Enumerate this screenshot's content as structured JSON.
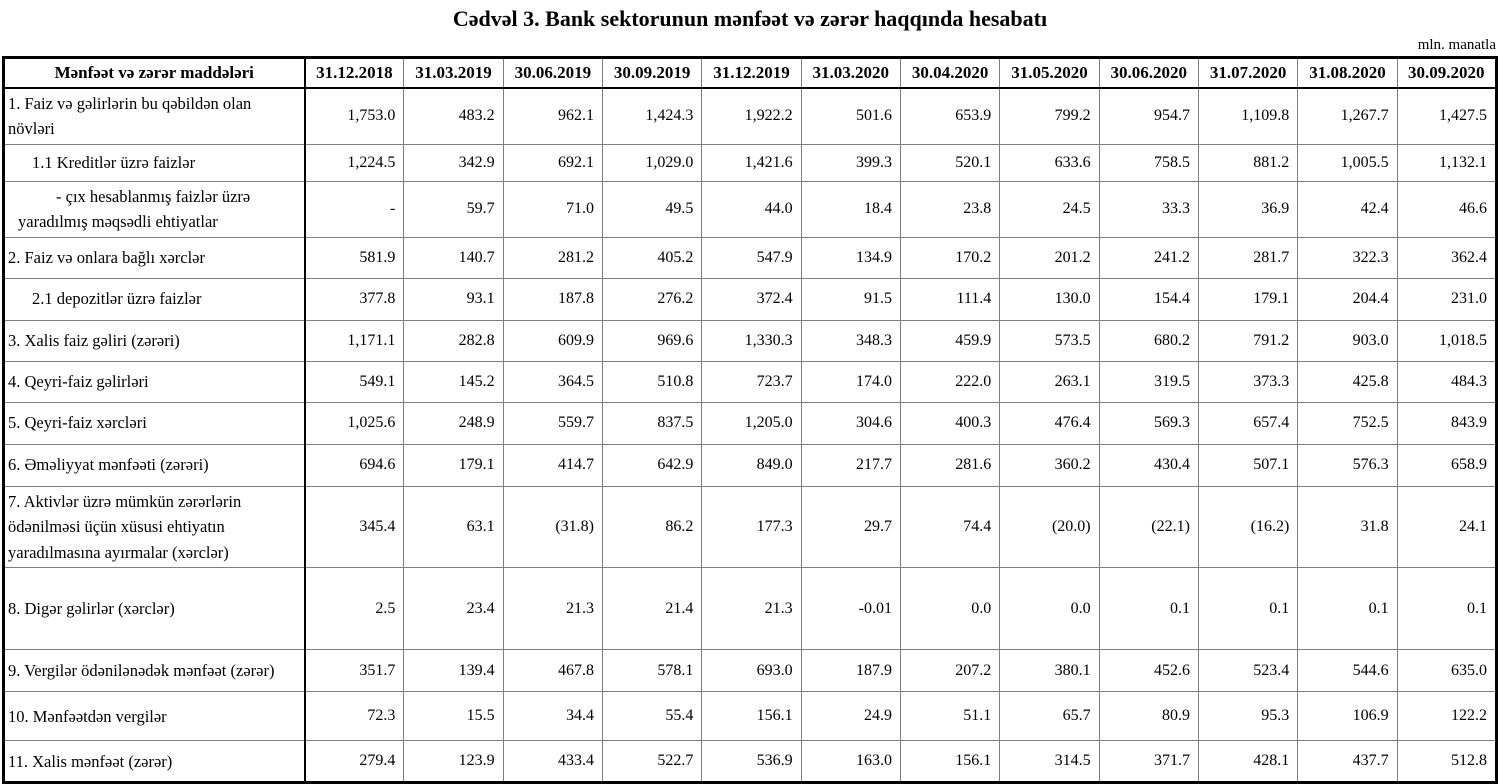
{
  "title": "Cədvəl 3. Bank sektorunun mənfəət və zərər haqqında hesabatı",
  "unit_note": "mln. manatla",
  "table": {
    "header": [
      "Mənfəət və zərər maddələri",
      "31.12.2018",
      "31.03.2019",
      "30.06.2019",
      "30.09.2019",
      "31.12.2019",
      "31.03.2020",
      "30.04.2020",
      "31.05.2020",
      "30.06.2020",
      "31.07.2020",
      "31.08.2020",
      "30.09.2020"
    ],
    "rows": [
      {
        "label": "1. Faiz və gəlirlərin bu qəbildən olan növləri",
        "level": "main",
        "values": [
          "1,753.0",
          "483.2",
          "962.1",
          "1,424.3",
          "1,922.2",
          "501.6",
          "653.9",
          "799.2",
          "954.7",
          "1,109.8",
          "1,267.7",
          "1,427.5"
        ]
      },
      {
        "label": "1.1 Kreditlər üzrə faizlər",
        "level": "sub",
        "values": [
          "1,224.5",
          "342.9",
          "692.1",
          "1,029.0",
          "1,421.6",
          "399.3",
          "520.1",
          "633.6",
          "758.5",
          "881.2",
          "1,005.5",
          "1,132.1"
        ]
      },
      {
        "label": "-  çıx hesablanmış faizlər üzrə yaradılmış məqsədli ehtiyatlar",
        "level": "dash",
        "values": [
          "-",
          "59.7",
          "71.0",
          "49.5",
          "44.0",
          "18.4",
          "23.8",
          "24.5",
          "33.3",
          "36.9",
          "42.4",
          "46.6"
        ]
      },
      {
        "label": "2. Faiz və onlara bağlı xərclər",
        "level": "main",
        "values": [
          "581.9",
          "140.7",
          "281.2",
          "405.2",
          "547.9",
          "134.9",
          "170.2",
          "201.2",
          "241.2",
          "281.7",
          "322.3",
          "362.4"
        ]
      },
      {
        "label": "2.1 depozitlər üzrə faizlər",
        "level": "sub",
        "values": [
          "377.8",
          "93.1",
          "187.8",
          "276.2",
          "372.4",
          "91.5",
          "111.4",
          "130.0",
          "154.4",
          "179.1",
          "204.4",
          "231.0"
        ]
      },
      {
        "label": "3. Xalis faiz gəliri (zərəri)",
        "level": "main",
        "values": [
          "1,171.1",
          "282.8",
          "609.9",
          "969.6",
          "1,330.3",
          "348.3",
          "459.9",
          "573.5",
          "680.2",
          "791.2",
          "903.0",
          "1,018.5"
        ]
      },
      {
        "label": "4. Qeyri-faiz gəlirləri",
        "level": "main",
        "values": [
          "549.1",
          "145.2",
          "364.5",
          "510.8",
          "723.7",
          "174.0",
          "222.0",
          "263.1",
          "319.5",
          "373.3",
          "425.8",
          "484.3"
        ]
      },
      {
        "label": "5. Qeyri-faiz xərcləri",
        "level": "main",
        "values": [
          "1,025.6",
          "248.9",
          "559.7",
          "837.5",
          "1,205.0",
          "304.6",
          "400.3",
          "476.4",
          "569.3",
          "657.4",
          "752.5",
          "843.9"
        ]
      },
      {
        "label": "6. Əməliyyat mənfəəti (zərəri)",
        "level": "main",
        "values": [
          "694.6",
          "179.1",
          "414.7",
          "642.9",
          "849.0",
          "217.7",
          "281.6",
          "360.2",
          "430.4",
          "507.1",
          "576.3",
          "658.9"
        ]
      },
      {
        "label": "7. Aktivlər üzrə mümkün zərərlərin ödənilməsi üçün xüsusi ehtiyatın yaradılmasına ayırmalar (xərclər)",
        "level": "main",
        "values": [
          "345.4",
          "63.1",
          "(31.8)",
          "86.2",
          "177.3",
          "29.7",
          "74.4",
          "(20.0)",
          "(22.1)",
          "(16.2)",
          "31.8",
          "24.1"
        ]
      },
      {
        "label": "8. Digər gəlirlər (xərclər)",
        "level": "main",
        "values": [
          "2.5",
          "23.4",
          "21.3",
          "21.4",
          "21.3",
          "-0.01",
          "0.0",
          "0.0",
          "0.1",
          "0.1",
          "0.1",
          "0.1"
        ]
      },
      {
        "label": "9. Vergilər ödənilənədək mənfəət (zərər)",
        "level": "main",
        "values": [
          "351.7",
          "139.4",
          "467.8",
          "578.1",
          "693.0",
          "187.9",
          "207.2",
          "380.1",
          "452.6",
          "523.4",
          "544.6",
          "635.0"
        ]
      },
      {
        "label": "10. Mənfəətdən vergilər",
        "level": "main",
        "values": [
          "72.3",
          "15.5",
          "34.4",
          "55.4",
          "156.1",
          "24.9",
          "51.1",
          "65.7",
          "80.9",
          "95.3",
          "106.9",
          "122.2"
        ]
      },
      {
        "label": "11. Xalis mənfəət (zərər)",
        "level": "main",
        "values": [
          "279.4",
          "123.9",
          "433.4",
          "522.7",
          "536.9",
          "163.0",
          "156.1",
          "314.5",
          "371.7",
          "428.1",
          "437.7",
          "512.8"
        ]
      }
    ]
  }
}
